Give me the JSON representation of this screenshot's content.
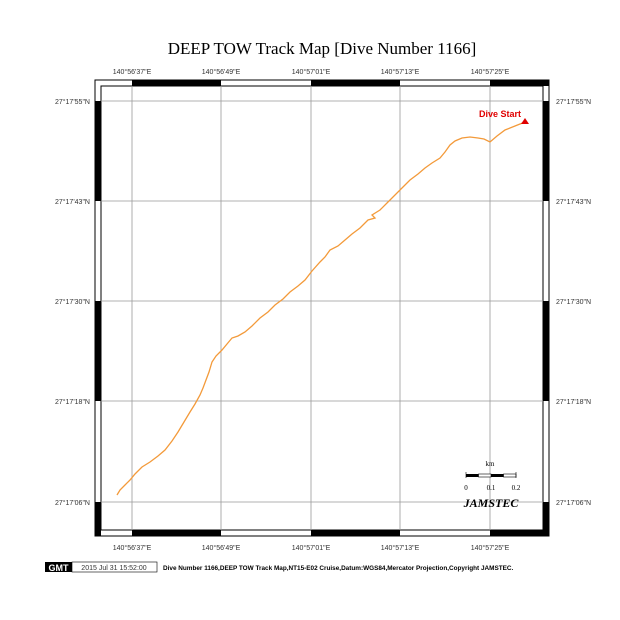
{
  "title": "DEEP TOW Track Map [Dive Number 1166]",
  "lon_labels": [
    "140°56'37\"E",
    "140°56'49\"E",
    "140°57'01\"E",
    "140°57'13\"E",
    "140°57'25\"E"
  ],
  "lat_labels": [
    "27°17'55\"N",
    "27°17'43\"N",
    "27°17'30\"N",
    "27°17'18\"N",
    "27°17'06\"N"
  ],
  "start_label": "Dive Start",
  "scale": {
    "unit": "km",
    "ticks": [
      "0",
      "0.1",
      "0.2"
    ]
  },
  "logo": "JAMSTEC",
  "footer": {
    "gmt_badge": "GMT",
    "timestamp": "2015 Jul 31 15:52:00",
    "caption": "Dive Number 1166,DEEP TOW Track Map,NT15-E02 Cruise,Datum:WGS84,Mercator Projection,Copyright JAMSTEC."
  },
  "colors": {
    "track": "#f39a3a",
    "start": "#e00000"
  }
}
